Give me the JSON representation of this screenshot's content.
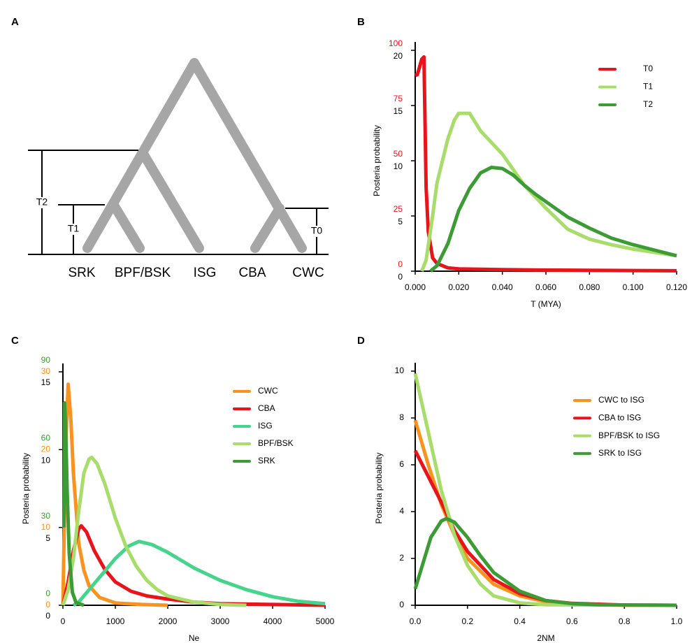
{
  "diagram": {
    "panel_label": "A",
    "taxa": [
      "SRK",
      "BPF/BSK",
      "ISG",
      "CBA",
      "CWC"
    ],
    "times": [
      "T2",
      "T1",
      "T0"
    ]
  },
  "chart_data": [
    {
      "type": "line",
      "panel_label": "B",
      "xlabel": "T (MYA)",
      "ylabel": "Posteria probability",
      "xlim": [
        0,
        0.12
      ],
      "xticks": [
        {
          "value": 0,
          "label": "0.000"
        },
        {
          "value": 0.02,
          "label": "0.020"
        },
        {
          "value": 0.04,
          "label": "0.040"
        },
        {
          "value": 0.06,
          "label": "0.060"
        },
        {
          "value": 0.08,
          "label": "0.080"
        },
        {
          "value": 0.1,
          "label": "0.100"
        },
        {
          "value": 0.12,
          "label": "0.120"
        }
      ],
      "ylim": [
        0,
        20
      ],
      "yticks": [
        0,
        5,
        10,
        15,
        20
      ],
      "y2lim": [
        0,
        100
      ],
      "y2ticks": [
        0,
        25,
        50,
        75,
        100
      ],
      "y2_color": "#e8141c",
      "legend": "upper right",
      "series": [
        {
          "name": "T0",
          "color": "#e8141c",
          "axis": "y2",
          "x": [
            0,
            0.001,
            0.003,
            0.004,
            0.005,
            0.006,
            0.008,
            0.01,
            0.015,
            0.02,
            0.04,
            0.06,
            0.08,
            0.1,
            0.12
          ],
          "values": [
            88.6,
            89,
            96,
            97,
            38,
            18,
            6,
            3.5,
            1.5,
            1,
            0.7,
            0.5,
            0.4,
            0.3,
            0.2
          ]
        },
        {
          "name": "T1",
          "color": "#a8dc6b",
          "x": [
            0.003,
            0.005,
            0.008,
            0.01,
            0.015,
            0.018,
            0.02,
            0.025,
            0.03,
            0.04,
            0.05,
            0.06,
            0.07,
            0.08,
            0.09,
            0.1,
            0.11,
            0.12
          ],
          "values": [
            0,
            1,
            5,
            8,
            12,
            13.7,
            14.3,
            14.3,
            12.7,
            10.6,
            7.8,
            5.7,
            3.8,
            2.9,
            2.4,
            2,
            1.7,
            1.4
          ]
        },
        {
          "name": "T2",
          "color": "#3d9b35",
          "x": [
            0.007,
            0.01,
            0.015,
            0.02,
            0.025,
            0.03,
            0.035,
            0.04,
            0.045,
            0.05,
            0.055,
            0.06,
            0.07,
            0.08,
            0.09,
            0.1,
            0.11,
            0.12
          ],
          "values": [
            0,
            0.5,
            2.5,
            5.5,
            7.5,
            8.9,
            9.4,
            9.3,
            8.7,
            7.8,
            7,
            6.3,
            4.9,
            3.9,
            3,
            2.4,
            1.9,
            1.4
          ]
        }
      ]
    },
    {
      "type": "line",
      "panel_label": "C",
      "xlabel": "Ne",
      "ylabel": "Posteria probability",
      "xlim": [
        0,
        5000
      ],
      "xticks": [
        0,
        1000,
        2000,
        3000,
        4000,
        5000
      ],
      "ylim": [
        0,
        15
      ],
      "yticks": [
        0,
        5,
        10,
        15
      ],
      "y2lim": [
        0,
        30
      ],
      "y2ticks": [
        0,
        10,
        20,
        30
      ],
      "y2_color": "#f7931e",
      "y3lim": [
        0,
        90
      ],
      "y3ticks": [
        0,
        30,
        60,
        90
      ],
      "y3_color": "#3d9b35",
      "legend": "upper right",
      "series": [
        {
          "name": "CWC",
          "color": "#f7931e",
          "axis": "y2",
          "x": [
            0,
            50,
            100,
            150,
            200,
            300,
            400,
            500,
            700,
            1000,
            1500,
            2000
          ],
          "values": [
            0,
            20,
            28.4,
            24,
            17,
            8,
            4.5,
            2.5,
            1,
            0.3,
            0.1,
            0
          ]
        },
        {
          "name": "CBA",
          "color": "#e8141c",
          "x": [
            0,
            100,
            200,
            300,
            350,
            450,
            600,
            800,
            1000,
            1300,
            1600,
            2000,
            2500,
            3000,
            4000,
            5000
          ],
          "values": [
            0,
            1.5,
            3.5,
            4.9,
            5.1,
            4.7,
            3.5,
            2.3,
            1.5,
            0.9,
            0.6,
            0.4,
            0.2,
            0.1,
            0.05,
            0
          ]
        },
        {
          "name": "ISG",
          "color": "#46d38c",
          "x": [
            200,
            300,
            500,
            750,
            1000,
            1250,
            1450,
            1700,
            2000,
            2500,
            3000,
            3500,
            4000,
            4500,
            5000
          ],
          "values": [
            0,
            0.2,
            1,
            2,
            3,
            3.8,
            4.1,
            3.9,
            3.4,
            2.4,
            1.6,
            1,
            0.55,
            0.25,
            0.1
          ]
        },
        {
          "name": "BPF/BSK",
          "color": "#a8dc6b",
          "x": [
            0,
            100,
            200,
            300,
            400,
            500,
            550,
            650,
            800,
            1000,
            1200,
            1400,
            1600,
            1800,
            2000,
            2500,
            3000,
            3500
          ],
          "values": [
            0,
            1,
            3,
            6,
            8.5,
            9.4,
            9.5,
            9.1,
            7.8,
            5.6,
            3.8,
            2.5,
            1.6,
            1,
            0.6,
            0.2,
            0.05,
            0
          ]
        },
        {
          "name": "SRK",
          "color": "#3d9b35",
          "axis": "y3",
          "x": [
            20,
            30,
            50,
            80,
            120,
            180,
            250,
            400
          ],
          "values": [
            30,
            78,
            70,
            45,
            20,
            5,
            1,
            0
          ]
        }
      ]
    },
    {
      "type": "line",
      "panel_label": "D",
      "xlabel": "2NM",
      "ylabel": "Posteria probability",
      "xlim": [
        0,
        1
      ],
      "xticks": [
        {
          "value": 0,
          "label": "0.0"
        },
        0.2,
        0.4,
        0.6,
        0.8,
        {
          "value": 1,
          "label": "1.0"
        }
      ],
      "ylim": [
        0,
        10
      ],
      "yticks": [
        0,
        2,
        4,
        6,
        8,
        10
      ],
      "legend": "upper right",
      "series": [
        {
          "name": "CWC to ISG",
          "color": "#f7931e",
          "x": [
            0,
            0.05,
            0.1,
            0.15,
            0.2,
            0.3,
            0.4,
            0.5,
            0.6,
            0.8,
            1
          ],
          "values": [
            7.9,
            6,
            4.3,
            3,
            2,
            0.9,
            0.4,
            0.15,
            0.05,
            0,
            0
          ]
        },
        {
          "name": "CBA to ISG",
          "color": "#e8141c",
          "x": [
            0,
            0.05,
            0.1,
            0.15,
            0.2,
            0.3,
            0.4,
            0.5,
            0.6,
            0.8,
            1
          ],
          "values": [
            6.6,
            5.5,
            4.4,
            3.2,
            2.3,
            1.1,
            0.5,
            0.2,
            0.08,
            0.01,
            0
          ]
        },
        {
          "name": "BPF/BSK to ISG",
          "color": "#a8dc6b",
          "x": [
            0,
            0.05,
            0.1,
            0.15,
            0.2,
            0.25,
            0.3,
            0.4,
            0.5,
            1
          ],
          "values": [
            9.9,
            7.4,
            4.9,
            3,
            1.7,
            0.9,
            0.4,
            0.1,
            0.02,
            0
          ]
        },
        {
          "name": "SRK to ISG",
          "color": "#3d9b35",
          "x": [
            0,
            0.03,
            0.06,
            0.1,
            0.12,
            0.15,
            0.2,
            0.25,
            0.3,
            0.4,
            0.5,
            0.6,
            0.7,
            1
          ],
          "values": [
            0.7,
            1.8,
            2.9,
            3.6,
            3.7,
            3.55,
            2.9,
            2.1,
            1.4,
            0.6,
            0.2,
            0.07,
            0.02,
            0
          ]
        }
      ]
    }
  ]
}
